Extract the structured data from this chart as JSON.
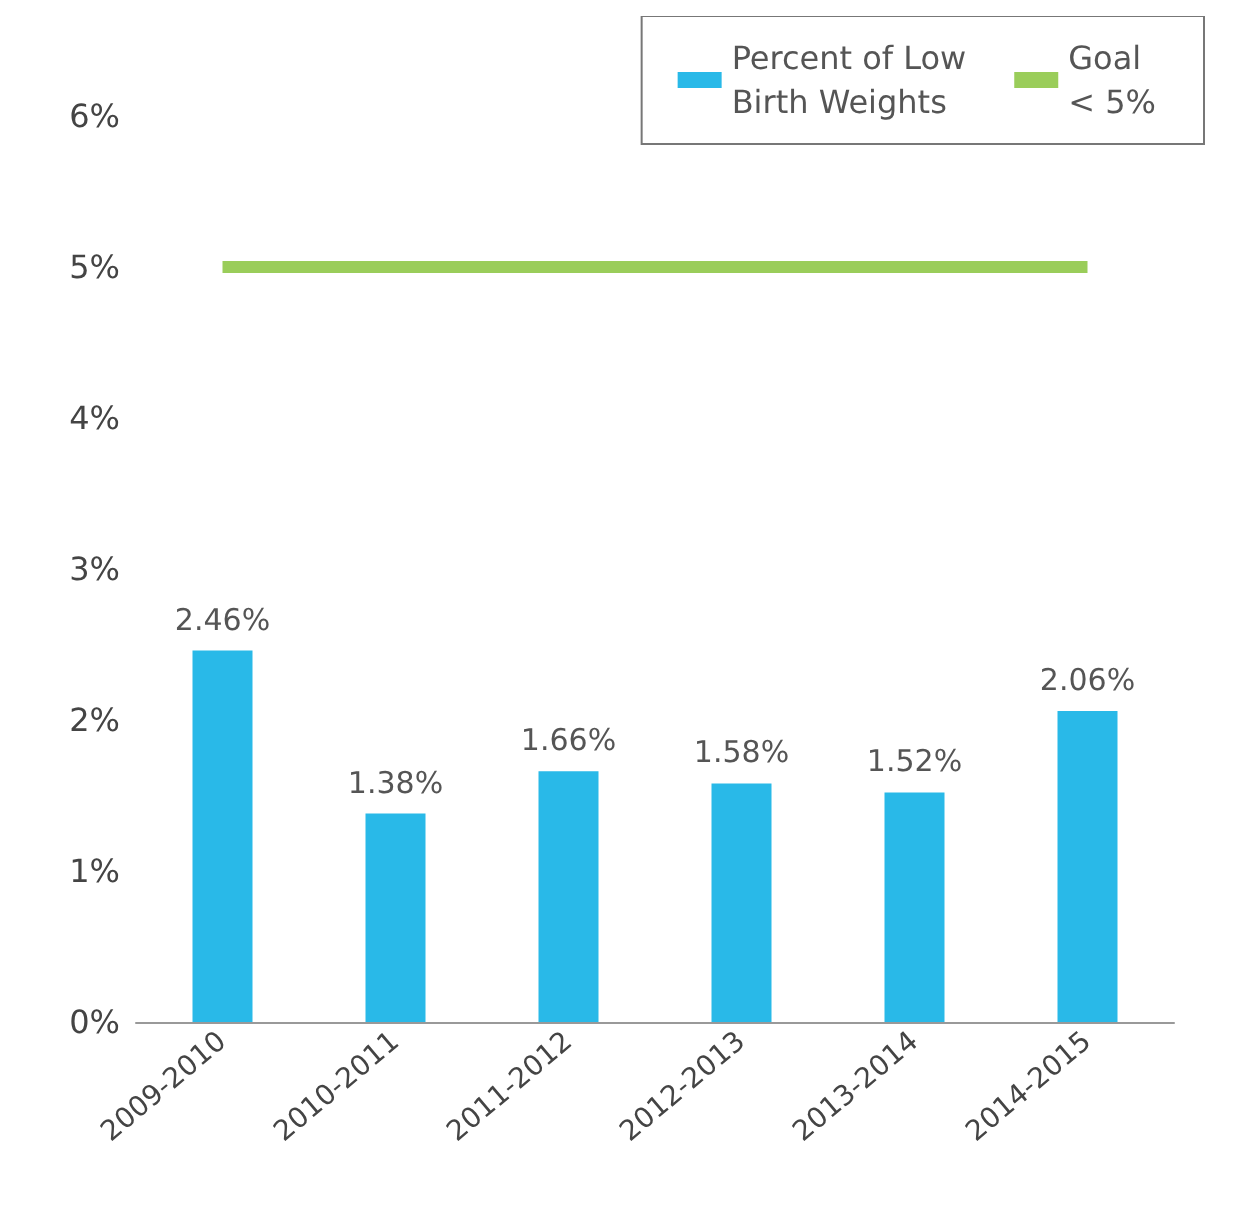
{
  "chart_data": {
    "type": "bar",
    "categories": [
      "2009-2010",
      "2010-2011",
      "2011-2012",
      "2012-2013",
      "2013-2014",
      "2014-2015"
    ],
    "series": [
      {
        "name": "Percent of Low\nBirth Weights",
        "color": "#29b9e8",
        "values": [
          2.46,
          1.38,
          1.66,
          1.58,
          1.52,
          2.06
        ],
        "value_labels": [
          "2.46%",
          "1.38%",
          "1.66%",
          "1.58%",
          "1.52%",
          "2.06%"
        ]
      },
      {
        "name": "Goal\n< 5%",
        "type": "line",
        "color": "#9acd5a",
        "values": [
          5,
          5,
          5,
          5,
          5,
          5
        ],
        "marker": "none",
        "line_style": "solid"
      }
    ],
    "ylim": [
      0,
      6
    ],
    "yticks": [
      {
        "value": 0,
        "label": "0%"
      },
      {
        "value": 1,
        "label": "1%"
      },
      {
        "value": 2,
        "label": "2%"
      },
      {
        "value": 3,
        "label": "3%"
      },
      {
        "value": 4,
        "label": "4%"
      },
      {
        "value": 5,
        "label": "5%"
      },
      {
        "value": 6,
        "label": "6%"
      }
    ],
    "grid": false,
    "legend": "top right"
  }
}
